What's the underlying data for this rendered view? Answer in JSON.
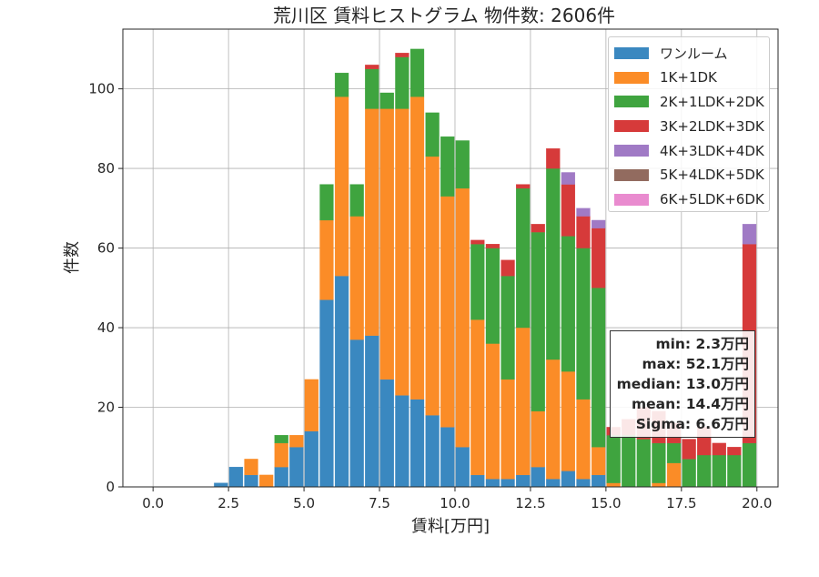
{
  "chart_data": {
    "type": "bar",
    "stacked": true,
    "title": "荒川区 賃料ヒストグラム 物件数: 2606件",
    "xlabel": "賃料[万円]",
    "ylabel": "件数",
    "xlim": [
      -1.0,
      20.7
    ],
    "ylim": [
      0,
      115
    ],
    "grid": true,
    "legend_position": "upper right",
    "x_ticks": [
      "0.0",
      "2.5",
      "5.0",
      "7.5",
      "10.0",
      "12.5",
      "15.0",
      "17.5",
      "20.0"
    ],
    "y_ticks": [
      "0",
      "20",
      "40",
      "60",
      "80",
      "100"
    ],
    "bin_width": 0.5,
    "x": [
      2.25,
      2.75,
      3.25,
      3.75,
      4.25,
      4.75,
      5.25,
      5.75,
      6.25,
      6.75,
      7.25,
      7.75,
      8.25,
      8.75,
      9.25,
      9.75,
      10.25,
      10.75,
      11.25,
      11.75,
      12.25,
      12.75,
      13.25,
      13.75,
      14.25,
      14.75,
      15.25,
      15.75,
      16.25,
      16.75,
      17.25,
      17.75,
      18.25,
      18.75,
      19.25,
      19.75
    ],
    "series": [
      {
        "name": "ワンルーム",
        "color": "#3a88c0",
        "values": [
          1,
          5,
          3,
          0,
          5,
          10,
          14,
          47,
          53,
          37,
          38,
          27,
          23,
          22,
          18,
          15,
          10,
          3,
          2,
          2,
          3,
          5,
          2,
          4,
          2,
          3,
          0,
          0,
          0,
          0,
          0,
          0,
          0,
          0,
          0,
          0
        ]
      },
      {
        "name": "1K+1DK",
        "color": "#fb8c27",
        "values": [
          0,
          0,
          4,
          3,
          6,
          3,
          13,
          20,
          45,
          31,
          57,
          68,
          72,
          76,
          65,
          58,
          65,
          39,
          34,
          25,
          37,
          14,
          30,
          25,
          20,
          7,
          1,
          0,
          0,
          1,
          6,
          0,
          0,
          0,
          0,
          0
        ]
      },
      {
        "name": "2K+1LDK+2DK",
        "color": "#3fa43f",
        "values": [
          0,
          0,
          0,
          0,
          2,
          0,
          0,
          9,
          6,
          8,
          10,
          4,
          13,
          12,
          11,
          15,
          12,
          19,
          24,
          26,
          35,
          45,
          48,
          34,
          38,
          40,
          12,
          13,
          12,
          10,
          5,
          7,
          8,
          8,
          8,
          11
        ]
      },
      {
        "name": "3K+2LDK+3DK",
        "color": "#d63a3a",
        "values": [
          0,
          0,
          0,
          0,
          0,
          0,
          0,
          0,
          0,
          0,
          1,
          0,
          1,
          0,
          0,
          0,
          0,
          1,
          1,
          4,
          1,
          2,
          5,
          13,
          8,
          15,
          2,
          4,
          8,
          8,
          5,
          5,
          7,
          3,
          2,
          50
        ]
      },
      {
        "name": "4K+3LDK+4DK",
        "color": "#a07ac5",
        "values": [
          0,
          0,
          0,
          0,
          0,
          0,
          0,
          0,
          0,
          0,
          0,
          0,
          0,
          0,
          0,
          0,
          0,
          0,
          0,
          0,
          0,
          0,
          0,
          3,
          2,
          2,
          0,
          0,
          0,
          0,
          0,
          0,
          0,
          0,
          0,
          5
        ]
      },
      {
        "name": "5K+4LDK+5DK",
        "color": "#926b5f",
        "values": [
          0,
          0,
          0,
          0,
          0,
          0,
          0,
          0,
          0,
          0,
          0,
          0,
          0,
          0,
          0,
          0,
          0,
          0,
          0,
          0,
          0,
          0,
          0,
          0,
          0,
          0,
          0,
          0,
          0,
          0,
          0,
          0,
          0,
          0,
          0,
          0
        ]
      },
      {
        "name": "6K+5LDK+6DK",
        "color": "#e98bcf",
        "values": [
          0,
          0,
          0,
          0,
          0,
          0,
          0,
          0,
          0,
          0,
          0,
          0,
          0,
          0,
          0,
          0,
          0,
          0,
          0,
          0,
          0,
          0,
          0,
          0,
          0,
          0,
          0,
          0,
          0,
          0,
          0,
          0,
          0,
          0,
          0,
          0
        ]
      }
    ],
    "annotations": {
      "min": "min: 2.3万円",
      "max": "max: 52.1万円",
      "median": "median: 13.0万円",
      "mean": "mean: 14.4万円",
      "sigma": "Sigma: 6.6万円"
    }
  }
}
